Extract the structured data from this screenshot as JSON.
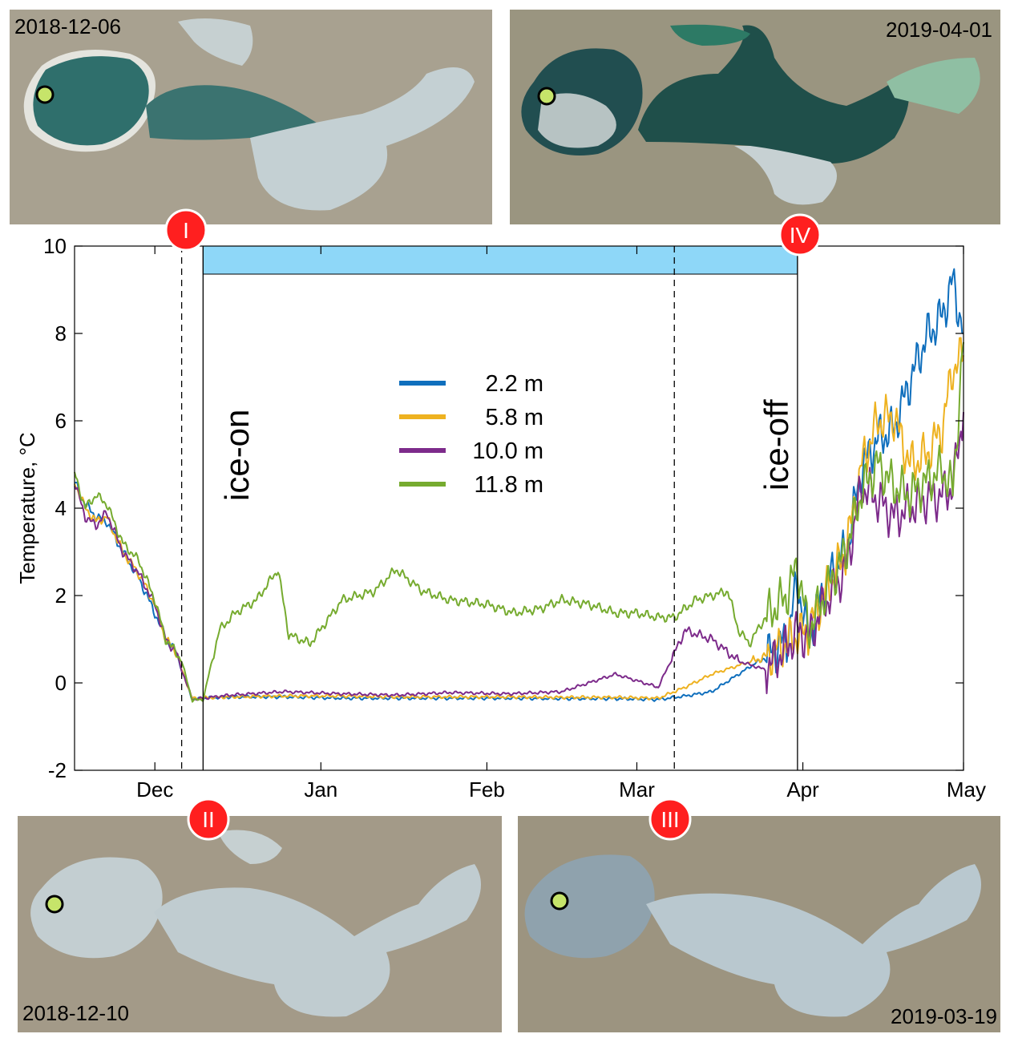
{
  "photos": {
    "p1": {
      "date": "2018-12-06",
      "state": "open water"
    },
    "p2": {
      "date": "2018-12-10",
      "state": "ice"
    },
    "p3": {
      "date": "2019-03-19",
      "state": "ice"
    },
    "p4": {
      "date": "2019-04-01",
      "state": "open water"
    }
  },
  "markers": {
    "I": "I",
    "II": "II",
    "III": "III",
    "IV": "IV"
  },
  "annotations": {
    "ice_on": "ice-on",
    "ice_off": "ice-off"
  },
  "colors": {
    "marker_red": "#ff1f1f",
    "ice_band": "#8ed7f8",
    "land": "#a39a88",
    "water": "#2a6e6a",
    "ice": "#c2cfd2"
  },
  "chart_data": {
    "type": "line",
    "title": "",
    "xlabel": "",
    "ylabel": "Temperature, °C",
    "ylim": [
      -2,
      10
    ],
    "yticks": [
      -2,
      0,
      2,
      4,
      6,
      8,
      10
    ],
    "xlim": [
      "2018-11-16",
      "2019-05-01"
    ],
    "xticks": [
      {
        "label": "Dec",
        "date": "2018-12-01"
      },
      {
        "label": "Jan",
        "date": "2019-01-01"
      },
      {
        "label": "Feb",
        "date": "2019-02-01"
      },
      {
        "label": "Mar",
        "date": "2019-03-01"
      },
      {
        "label": "Apr",
        "date": "2019-04-01"
      },
      {
        "label": "May",
        "date": "2019-05-01"
      }
    ],
    "grid": false,
    "legend_position": "upper-center",
    "ice_cover": {
      "start": "2018-12-10",
      "end": "2019-03-31"
    },
    "event_lines": [
      {
        "id": "I",
        "date": "2018-12-06",
        "style": "dashed"
      },
      {
        "id": "II",
        "date": "2018-12-10",
        "style": "solid"
      },
      {
        "id": "III",
        "date": "2019-03-08",
        "style": "dashed"
      },
      {
        "id": "IV",
        "date": "2019-03-31",
        "style": "solid"
      }
    ],
    "series": [
      {
        "name": "2.2 m",
        "color": "#0f6fbd",
        "x": [
          "2018-11-16",
          "2018-11-18",
          "2018-11-20",
          "2018-11-22",
          "2018-11-25",
          "2018-11-28",
          "2018-12-01",
          "2018-12-03",
          "2018-12-05",
          "2018-12-06",
          "2018-12-08",
          "2018-12-10",
          "2018-12-15",
          "2018-12-25",
          "2019-01-05",
          "2019-01-15",
          "2019-01-25",
          "2019-02-05",
          "2019-02-15",
          "2019-02-25",
          "2019-03-05",
          "2019-03-10",
          "2019-03-15",
          "2019-03-20",
          "2019-03-25",
          "2019-03-29",
          "2019-03-31",
          "2019-04-02",
          "2019-04-05",
          "2019-04-09",
          "2019-04-12",
          "2019-04-15",
          "2019-04-18",
          "2019-04-21",
          "2019-04-24",
          "2019-04-27",
          "2019-04-29",
          "2019-05-01"
        ],
        "y": [
          4.6,
          4.1,
          3.8,
          3.7,
          3.0,
          2.4,
          1.6,
          1.0,
          0.7,
          0.3,
          -0.38,
          -0.35,
          -0.32,
          -0.32,
          -0.35,
          -0.35,
          -0.35,
          -0.35,
          -0.36,
          -0.36,
          -0.38,
          -0.3,
          -0.2,
          0.2,
          0.6,
          1.0,
          2.3,
          1.0,
          2.2,
          3.0,
          4.9,
          5.6,
          5.8,
          6.9,
          7.9,
          8.4,
          9.2,
          8.0
        ]
      },
      {
        "name": "5.8 m",
        "color": "#eeb220",
        "x": [
          "2018-11-16",
          "2018-11-18",
          "2018-11-20",
          "2018-11-22",
          "2018-11-25",
          "2018-11-28",
          "2018-12-01",
          "2018-12-03",
          "2018-12-05",
          "2018-12-06",
          "2018-12-08",
          "2018-12-10",
          "2018-12-15",
          "2018-12-25",
          "2019-01-05",
          "2019-01-15",
          "2019-01-25",
          "2019-02-05",
          "2019-02-15",
          "2019-02-25",
          "2019-03-05",
          "2019-03-10",
          "2019-03-15",
          "2019-03-20",
          "2019-03-25",
          "2019-03-29",
          "2019-03-31",
          "2019-04-02",
          "2019-04-05",
          "2019-04-09",
          "2019-04-12",
          "2019-04-15",
          "2019-04-18",
          "2019-04-21",
          "2019-04-24",
          "2019-04-27",
          "2019-04-29",
          "2019-05-01"
        ],
        "y": [
          4.6,
          4.0,
          3.7,
          3.8,
          3.0,
          2.5,
          1.8,
          1.0,
          0.7,
          0.3,
          -0.36,
          -0.34,
          -0.32,
          -0.3,
          -0.3,
          -0.32,
          -0.32,
          -0.32,
          -0.33,
          -0.33,
          -0.35,
          -0.1,
          0.2,
          0.4,
          0.6,
          0.9,
          1.1,
          1.2,
          2.0,
          3.0,
          5.0,
          6.0,
          6.1,
          5.0,
          5.2,
          5.8,
          7.2,
          7.5
        ]
      },
      {
        "name": "10.0 m",
        "color": "#7d2b8b",
        "x": [
          "2018-11-16",
          "2018-11-18",
          "2018-11-20",
          "2018-11-22",
          "2018-11-25",
          "2018-11-28",
          "2018-12-01",
          "2018-12-03",
          "2018-12-05",
          "2018-12-06",
          "2018-12-08",
          "2018-12-10",
          "2018-12-15",
          "2018-12-25",
          "2019-01-05",
          "2019-01-15",
          "2019-01-25",
          "2019-02-05",
          "2019-02-15",
          "2019-02-25",
          "2019-03-05",
          "2019-03-10",
          "2019-03-15",
          "2019-03-20",
          "2019-03-25",
          "2019-03-29",
          "2019-03-31",
          "2019-04-02",
          "2019-04-05",
          "2019-04-09",
          "2019-04-12",
          "2019-04-15",
          "2019-04-18",
          "2019-04-21",
          "2019-04-24",
          "2019-04-27",
          "2019-04-29",
          "2019-05-01"
        ],
        "y": [
          4.6,
          3.8,
          3.6,
          3.9,
          3.0,
          2.5,
          1.8,
          1.0,
          0.7,
          0.3,
          -0.38,
          -0.35,
          -0.28,
          -0.2,
          -0.25,
          -0.28,
          -0.22,
          -0.25,
          -0.2,
          0.2,
          -0.1,
          1.2,
          1.0,
          0.5,
          0.3,
          0.8,
          1.2,
          1.0,
          1.8,
          2.6,
          4.5,
          4.2,
          3.8,
          4.0,
          4.2,
          4.3,
          4.5,
          6.2
        ]
      },
      {
        "name": "11.8 m",
        "color": "#76ab2f",
        "x": [
          "2018-11-16",
          "2018-11-18",
          "2018-11-20",
          "2018-11-22",
          "2018-11-25",
          "2018-11-28",
          "2018-12-01",
          "2018-12-03",
          "2018-12-05",
          "2018-12-06",
          "2018-12-08",
          "2018-12-10",
          "2018-12-13",
          "2018-12-16",
          "2018-12-20",
          "2018-12-24",
          "2018-12-26",
          "2018-12-30",
          "2019-01-05",
          "2019-01-11",
          "2019-01-15",
          "2019-01-20",
          "2019-01-25",
          "2019-02-01",
          "2019-02-06",
          "2019-02-11",
          "2019-02-15",
          "2019-02-20",
          "2019-02-25",
          "2019-03-01",
          "2019-03-05",
          "2019-03-08",
          "2019-03-12",
          "2019-03-18",
          "2019-03-20",
          "2019-03-22",
          "2019-03-25",
          "2019-03-29",
          "2019-03-31",
          "2019-04-02",
          "2019-04-05",
          "2019-04-09",
          "2019-04-12",
          "2019-04-15",
          "2019-04-18",
          "2019-04-21",
          "2019-04-24",
          "2019-04-27",
          "2019-04-29",
          "2019-05-01"
        ],
        "y": [
          4.8,
          4.0,
          4.3,
          4.1,
          3.2,
          2.8,
          1.9,
          1.0,
          0.7,
          0.5,
          -0.4,
          -0.38,
          1.2,
          1.6,
          1.9,
          2.6,
          1.1,
          0.9,
          1.9,
          2.1,
          2.6,
          2.1,
          1.9,
          1.8,
          1.6,
          1.7,
          1.9,
          1.8,
          1.6,
          1.6,
          1.5,
          1.5,
          1.9,
          2.1,
          1.2,
          0.9,
          1.5,
          2.0,
          2.7,
          1.2,
          2.0,
          3.0,
          4.4,
          5.0,
          4.5,
          4.3,
          4.6,
          4.9,
          4.4,
          7.8
        ]
      }
    ]
  }
}
